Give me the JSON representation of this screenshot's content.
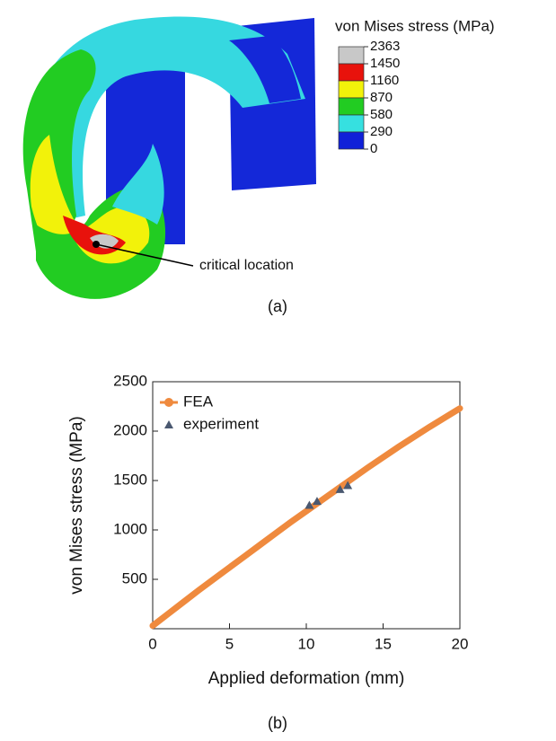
{
  "panel_a": {
    "legend_title": "von Mises stress (MPa)",
    "legend_levels": [
      "2363",
      "1450",
      "1160",
      "870",
      "580",
      "290",
      "0"
    ],
    "legend_colors": [
      "#c8c8c8",
      "#e8120c",
      "#f2f20a",
      "#22cc22",
      "#36e0e0",
      "#1020d8"
    ],
    "annotation": "critical location",
    "caption": "(a)"
  },
  "chart_data": {
    "type": "line",
    "x_label": "Applied deformation (mm)",
    "y_label": "von Mises stress (MPa)",
    "caption": "(b)",
    "xlim": [
      0,
      20
    ],
    "xticks": [
      0,
      5,
      10,
      15,
      20
    ],
    "ylim": [
      0,
      2500
    ],
    "yticks": [
      500,
      1000,
      1500,
      2000,
      2500
    ],
    "legend": "upper left",
    "series": [
      {
        "name": "FEA",
        "color": "#ef8a3e",
        "marker": "circle",
        "x": [
          0,
          1,
          2,
          3,
          4,
          5,
          6,
          7,
          8,
          9,
          10,
          11,
          12,
          13,
          14,
          15,
          16,
          17,
          18,
          19,
          20
        ],
        "values": [
          30,
          150,
          270,
          390,
          505,
          620,
          735,
          850,
          965,
          1080,
          1190,
          1300,
          1410,
          1520,
          1630,
          1735,
          1840,
          1940,
          2040,
          2135,
          2230
        ]
      },
      {
        "name": "experiment",
        "color": "#4a5870",
        "marker": "triangle",
        "x": [
          10.2,
          10.7,
          12.2,
          12.7
        ],
        "values": [
          1250,
          1290,
          1410,
          1450
        ]
      }
    ]
  }
}
